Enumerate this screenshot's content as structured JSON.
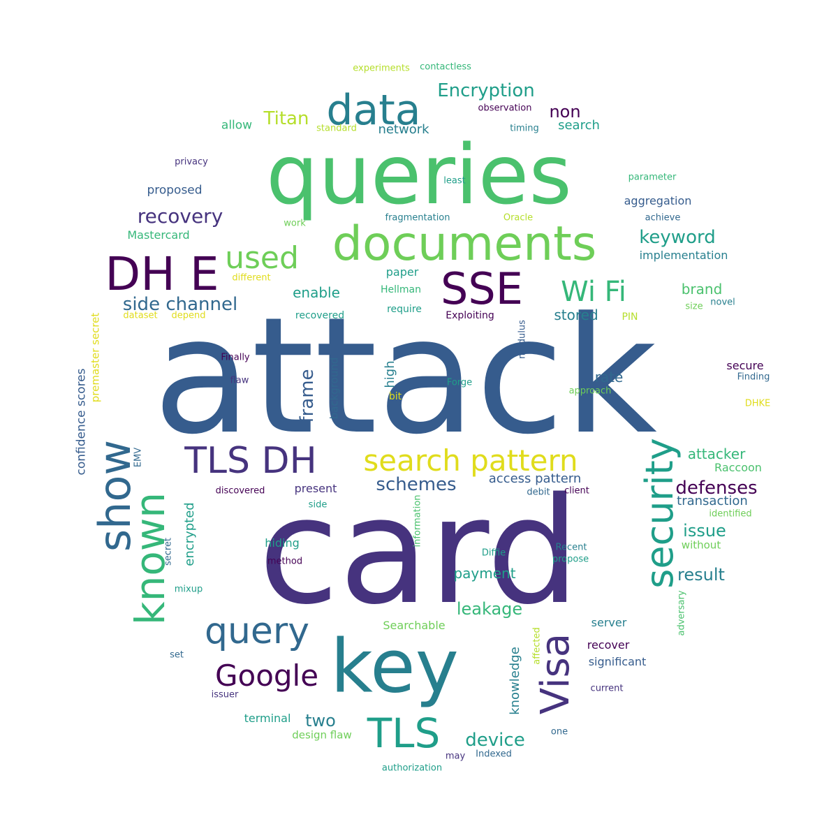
{
  "palette": {
    "dark_purple": "#440154",
    "indigo": "#46337e",
    "blue": "#365c8d",
    "steel": "#31688e",
    "teal_blue": "#277f8e",
    "teal": "#1f9e89",
    "sea_green": "#35b779",
    "green": "#4ac16d",
    "light_green": "#6ece58",
    "lime": "#b5de2b",
    "yellow": "#e0dc1c"
  },
  "words": [
    {
      "text": "attack",
      "color": "blue"
    },
    {
      "text": "card",
      "color": "indigo"
    },
    {
      "text": "queries",
      "color": "green"
    },
    {
      "text": "key",
      "color": "teal_blue"
    },
    {
      "text": "documents",
      "color": "light_green"
    },
    {
      "text": "data",
      "color": "teal_blue"
    },
    {
      "text": "DH E",
      "color": "dark_purple"
    },
    {
      "text": "TLS DH",
      "color": "indigo"
    },
    {
      "text": "search pattern",
      "color": "yellow"
    },
    {
      "text": "SSE",
      "color": "dark_purple"
    },
    {
      "text": "show",
      "color": "steel"
    },
    {
      "text": "known",
      "color": "sea_green"
    },
    {
      "text": "security",
      "color": "teal"
    },
    {
      "text": "TLS",
      "color": "teal"
    },
    {
      "text": "query",
      "color": "steel"
    },
    {
      "text": "Visa",
      "color": "indigo"
    },
    {
      "text": "Google",
      "color": "dark_purple"
    },
    {
      "text": "used",
      "color": "light_green"
    },
    {
      "text": "Wi Fi",
      "color": "sea_green"
    },
    {
      "text": "Encryption",
      "color": "teal"
    },
    {
      "text": "recovery",
      "color": "indigo"
    },
    {
      "text": "side channel",
      "color": "steel"
    },
    {
      "text": "keyword",
      "color": "teal"
    },
    {
      "text": "schemes",
      "color": "blue"
    },
    {
      "text": "defenses",
      "color": "dark_purple"
    },
    {
      "text": "Titan",
      "color": "lime"
    },
    {
      "text": "non",
      "color": "dark_purple"
    },
    {
      "text": "device",
      "color": "teal"
    },
    {
      "text": "leakage",
      "color": "sea_green"
    },
    {
      "text": "frame",
      "color": "blue"
    },
    {
      "text": "result",
      "color": "teal_blue"
    },
    {
      "text": "issue",
      "color": "teal"
    },
    {
      "text": "two",
      "color": "teal_blue"
    },
    {
      "text": "payment",
      "color": "teal"
    },
    {
      "text": "rate",
      "color": "steel"
    },
    {
      "text": "enable",
      "color": "teal"
    },
    {
      "text": "stored",
      "color": "teal_blue"
    },
    {
      "text": "brand",
      "color": "green"
    },
    {
      "text": "attacker",
      "color": "sea_green"
    },
    {
      "text": "access pattern",
      "color": "blue"
    },
    {
      "text": "transaction",
      "color": "steel"
    },
    {
      "text": "knowledge",
      "color": "teal_blue"
    },
    {
      "text": "encrypted",
      "color": "teal"
    },
    {
      "text": "confidence scores",
      "color": "blue"
    },
    {
      "text": "premaster secret",
      "color": "yellow"
    },
    {
      "text": "network",
      "color": "teal_blue"
    },
    {
      "text": "search",
      "color": "teal"
    },
    {
      "text": "allow",
      "color": "sea_green"
    },
    {
      "text": "proposed",
      "color": "blue"
    },
    {
      "text": "Mastercard",
      "color": "sea_green"
    },
    {
      "text": "high",
      "color": "teal_blue"
    },
    {
      "text": "aggregation",
      "color": "blue"
    },
    {
      "text": "implementation",
      "color": "teal_blue"
    },
    {
      "text": "paper",
      "color": "teal"
    },
    {
      "text": "present",
      "color": "indigo"
    },
    {
      "text": "hiding",
      "color": "teal"
    },
    {
      "text": "server",
      "color": "teal_blue"
    },
    {
      "text": "recover",
      "color": "dark_purple"
    },
    {
      "text": "significant",
      "color": "blue"
    },
    {
      "text": "terminal",
      "color": "teal"
    },
    {
      "text": "design flaw",
      "color": "light_green"
    },
    {
      "text": "Searchable",
      "color": "light_green"
    },
    {
      "text": "secure",
      "color": "dark_purple"
    },
    {
      "text": "background",
      "color": "steel"
    },
    {
      "text": "Raccoon",
      "color": "green"
    },
    {
      "text": "without",
      "color": "light_green"
    },
    {
      "text": "PIN",
      "color": "lime"
    },
    {
      "text": "Hellman",
      "color": "sea_green"
    },
    {
      "text": "require",
      "color": "teal"
    },
    {
      "text": "recovered",
      "color": "teal"
    },
    {
      "text": "Exploiting",
      "color": "dark_purple"
    },
    {
      "text": "modulus",
      "color": "blue"
    },
    {
      "text": "bit",
      "color": "yellow"
    },
    {
      "text": "approach",
      "color": "light_green"
    },
    {
      "text": "Forge",
      "color": "teal"
    },
    {
      "text": "different",
      "color": "yellow"
    },
    {
      "text": "dataset",
      "color": "yellow"
    },
    {
      "text": "depend",
      "color": "yellow"
    },
    {
      "text": "experiments",
      "color": "lime"
    },
    {
      "text": "contactless",
      "color": "sea_green"
    },
    {
      "text": "observation",
      "color": "dark_purple"
    },
    {
      "text": "standard",
      "color": "lime"
    },
    {
      "text": "timing",
      "color": "teal_blue"
    },
    {
      "text": "privacy",
      "color": "indigo"
    },
    {
      "text": "least",
      "color": "teal"
    },
    {
      "text": "parameter",
      "color": "sea_green"
    },
    {
      "text": "work",
      "color": "light_green"
    },
    {
      "text": "fragmentation",
      "color": "teal_blue"
    },
    {
      "text": "Oracle",
      "color": "lime"
    },
    {
      "text": "achieve",
      "color": "steel"
    },
    {
      "text": "size",
      "color": "light_green"
    },
    {
      "text": "novel",
      "color": "teal_blue"
    },
    {
      "text": "Finally",
      "color": "dark_purple"
    },
    {
      "text": "flaw",
      "color": "indigo"
    },
    {
      "text": "Finding",
      "color": "steel"
    },
    {
      "text": "DHKE",
      "color": "yellow"
    },
    {
      "text": "EMV",
      "color": "steel"
    },
    {
      "text": "discovered",
      "color": "dark_purple"
    },
    {
      "text": "side",
      "color": "teal"
    },
    {
      "text": "debit",
      "color": "steel"
    },
    {
      "text": "client",
      "color": "dark_purple"
    },
    {
      "text": "identified",
      "color": "light_green"
    },
    {
      "text": "information",
      "color": "green"
    },
    {
      "text": "secret",
      "color": "steel"
    },
    {
      "text": "method",
      "color": "dark_purple"
    },
    {
      "text": "Recent",
      "color": "teal_blue"
    },
    {
      "text": "propose",
      "color": "teal"
    },
    {
      "text": "Diffie",
      "color": "teal"
    },
    {
      "text": "mixup",
      "color": "teal"
    },
    {
      "text": "adversary",
      "color": "green"
    },
    {
      "text": "affected",
      "color": "lime"
    },
    {
      "text": "set",
      "color": "steel"
    },
    {
      "text": "issuer",
      "color": "indigo"
    },
    {
      "text": "current",
      "color": "indigo"
    },
    {
      "text": "one",
      "color": "steel"
    },
    {
      "text": "may",
      "color": "indigo"
    },
    {
      "text": "Indexed",
      "color": "steel"
    },
    {
      "text": "authorization",
      "color": "teal"
    }
  ]
}
